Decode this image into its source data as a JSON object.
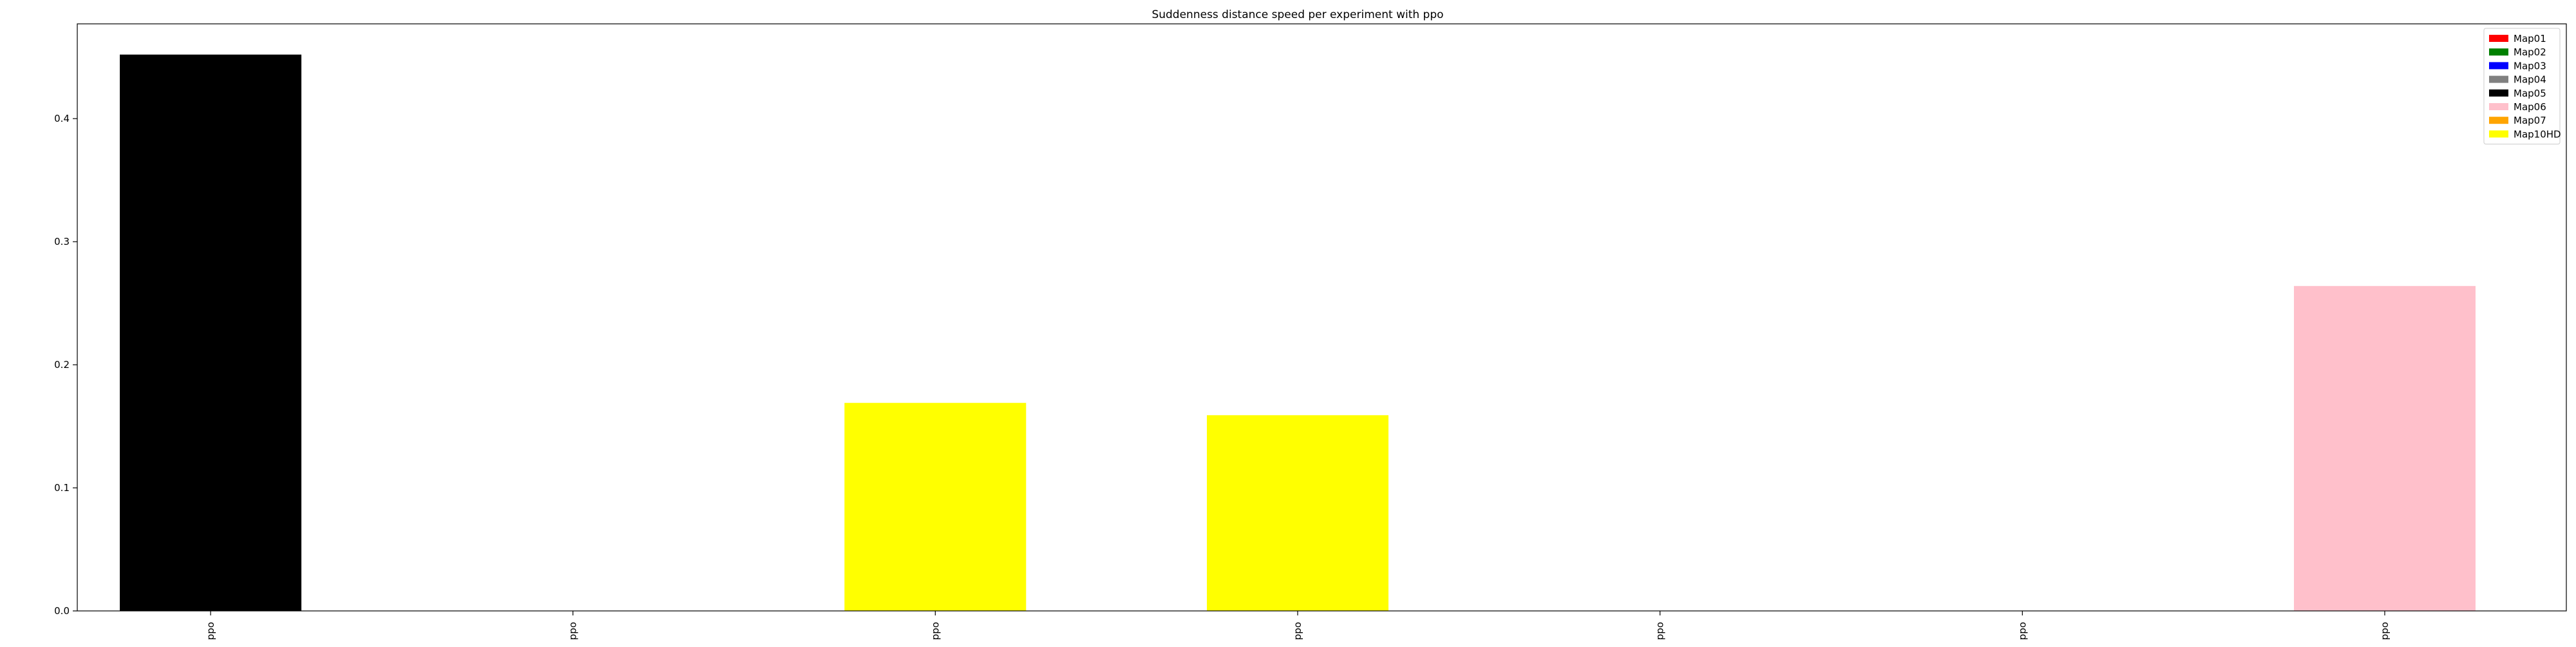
{
  "chart_data": {
    "type": "bar",
    "title": "Suddenness distance speed per experiment with ppo",
    "xlabel": "",
    "ylabel": "",
    "ylim": [
      0,
      0.477
    ],
    "yticks": [
      0.0,
      0.1,
      0.2,
      0.3,
      0.4
    ],
    "ytick_labels": [
      "0.0",
      "0.1",
      "0.2",
      "0.3",
      "0.4"
    ],
    "categories": [
      "ppo",
      "ppo",
      "ppo",
      "ppo",
      "ppo",
      "ppo",
      "ppo"
    ],
    "bars": [
      {
        "category_index": 0,
        "value": 0.452,
        "series": "Map05",
        "color": "#000000"
      },
      {
        "category_index": 1,
        "value": 0.0,
        "series": "Map01",
        "color": "#ff0000"
      },
      {
        "category_index": 2,
        "value": 0.169,
        "series": "Map10HD",
        "color": "#ffff00"
      },
      {
        "category_index": 3,
        "value": 0.159,
        "series": "Map10HD",
        "color": "#ffff00"
      },
      {
        "category_index": 4,
        "value": 0.0,
        "series": "Map01",
        "color": "#ff0000"
      },
      {
        "category_index": 5,
        "value": 0.0,
        "series": "Map01",
        "color": "#ff0000"
      },
      {
        "category_index": 6,
        "value": 0.264,
        "series": "Map06",
        "color": "#ffc0cb"
      }
    ],
    "legend": {
      "position": "top-right",
      "entries": [
        {
          "label": "Map01",
          "color": "#ff0000"
        },
        {
          "label": "Map02",
          "color": "#008000"
        },
        {
          "label": "Map03",
          "color": "#0000ff"
        },
        {
          "label": "Map04",
          "color": "#808080"
        },
        {
          "label": "Map05",
          "color": "#000000"
        },
        {
          "label": "Map06",
          "color": "#ffc0cb"
        },
        {
          "label": "Map07",
          "color": "#ffa500"
        },
        {
          "label": "Map10HD",
          "color": "#ffff00"
        }
      ]
    },
    "grid": false
  }
}
